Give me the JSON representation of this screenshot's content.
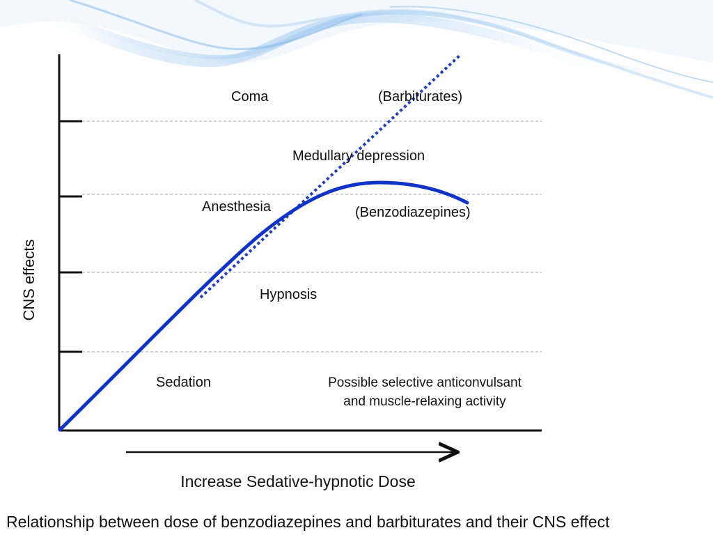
{
  "diagram": {
    "y_axis_label": "CNS effects",
    "x_axis_label": "Increase Sedative-hypnotic Dose",
    "levels": [
      "Sedation",
      "Hypnosis",
      "Anesthesia",
      "Coma"
    ],
    "region_labels": {
      "sedation": "Sedation",
      "hypnosis": "Hypnosis",
      "anesthesia": "Anesthesia",
      "coma": "Coma",
      "medullary": "Medullary depression"
    },
    "annotation": {
      "line1": "Possible selective anticonvulsant",
      "line2": "and muscle-relaxing activity"
    },
    "curves": [
      {
        "name": "(Barbiturates)",
        "style": "dotted",
        "color": "#1f3fbf"
      },
      {
        "name": "(Benzodiazepines)",
        "style": "solid",
        "color": "#0f33c6"
      }
    ]
  },
  "caption": "Relationship between dose of benzodiazepines and barbiturates and their CNS effect",
  "colors": {
    "curve": "#0f33c6",
    "axis": "#111111",
    "gridline": "#bbbbbb",
    "decoration": "#9fc8ef"
  }
}
